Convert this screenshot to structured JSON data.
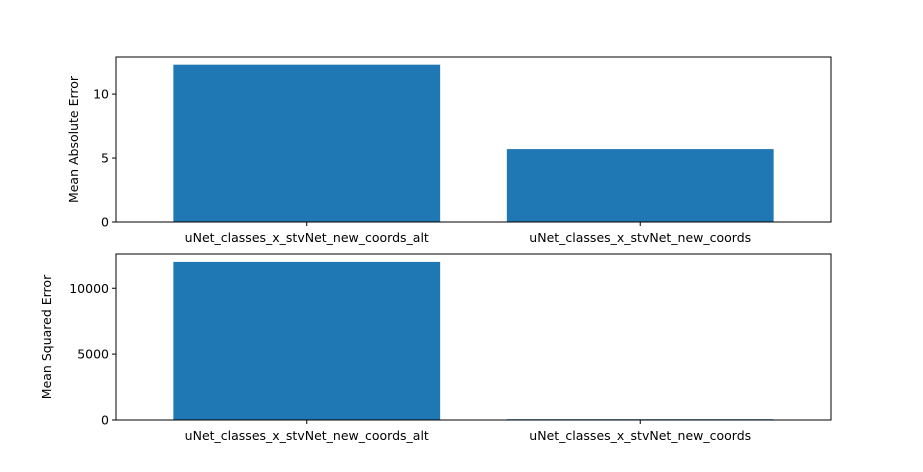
{
  "chart_data": [
    {
      "type": "bar",
      "categories": [
        "uNet_classes_x_stvNet_new_coords_alt",
        "uNet_classes_x_stvNet_new_coords"
      ],
      "values": [
        12.3,
        5.7
      ],
      "ylabel": "Mean Absolute Error",
      "ylim": [
        0,
        12.9
      ],
      "yticks": [
        0,
        5,
        10
      ],
      "ytick_labels": [
        "0",
        "5",
        "10"
      ],
      "grid": false,
      "color": "#1f77b4"
    },
    {
      "type": "bar",
      "categories": [
        "uNet_classes_x_stvNet_new_coords_alt",
        "uNet_classes_x_stvNet_new_coords"
      ],
      "values": [
        12000,
        60
      ],
      "ylabel": "Mean Squared Error",
      "ylim": [
        0,
        12600
      ],
      "yticks": [
        0,
        5000,
        10000
      ],
      "ytick_labels": [
        "0",
        "5000",
        "10000"
      ],
      "grid": false,
      "color": "#1f77b4"
    }
  ]
}
